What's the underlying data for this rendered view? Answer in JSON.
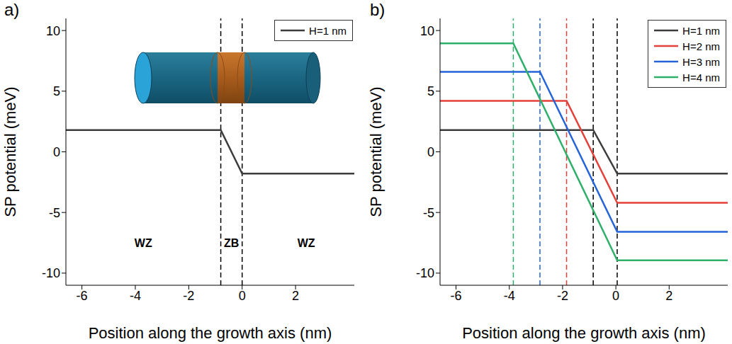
{
  "chart_data": [
    {
      "type": "line",
      "panel_label": "a)",
      "x_label": "Position along the growth axis (nm)",
      "y_label": "SP potential (meV)",
      "xlim": [
        -6.6,
        4.2
      ],
      "ylim": [
        -11,
        11
      ],
      "xticks": [
        -6,
        -4,
        -2,
        0,
        2
      ],
      "yticks": [
        -10,
        -5,
        0,
        5,
        10
      ],
      "legend": "upper right",
      "series": [
        {
          "name": "H=1 nm",
          "color": "#3c3c3c",
          "x": [
            -6.6,
            -0.8,
            0,
            4.2
          ],
          "values": [
            1.8,
            1.8,
            -1.8,
            -1.8
          ]
        }
      ],
      "vlines": [
        {
          "x": -0.8,
          "color": "#000000",
          "line_style": "dashed"
        },
        {
          "x": 0,
          "color": "#000000",
          "line_style": "dashed"
        }
      ],
      "annotations": [
        {
          "text": "WZ",
          "x": -3.7,
          "y": -7.5
        },
        {
          "text": "ZB",
          "x": -0.4,
          "y": -7.5
        },
        {
          "text": "WZ",
          "x": 2.4,
          "y": -7.5
        }
      ]
    },
    {
      "type": "line",
      "panel_label": "b)",
      "x_label": "Position along the growth axis (nm)",
      "y_label": "SP potential (meV)",
      "xlim": [
        -6.6,
        4.2
      ],
      "ylim": [
        -11,
        11
      ],
      "xticks": [
        -6,
        -4,
        -2,
        0,
        2
      ],
      "yticks": [
        -10,
        -5,
        0,
        5,
        10
      ],
      "legend": "upper right",
      "series": [
        {
          "name": "H=1 nm",
          "color": "#3c3c3c",
          "x": [
            -6.6,
            -0.85,
            0.05,
            4.2
          ],
          "values": [
            1.8,
            1.8,
            -1.8,
            -1.8
          ]
        },
        {
          "name": "H=2 nm",
          "color": "#e5403a",
          "x": [
            -6.6,
            -1.85,
            0.05,
            4.2
          ],
          "values": [
            4.2,
            4.2,
            -4.2,
            -4.2
          ]
        },
        {
          "name": "H=3 nm",
          "color": "#2463d9",
          "x": [
            -6.6,
            -2.85,
            0.05,
            4.2
          ],
          "values": [
            6.6,
            6.6,
            -6.6,
            -6.6
          ]
        },
        {
          "name": "H=4 nm",
          "color": "#2fb06a",
          "x": [
            -6.6,
            -3.85,
            0.05,
            4.2
          ],
          "values": [
            8.95,
            8.95,
            -8.95,
            -8.95
          ]
        }
      ],
      "vlines": [
        {
          "x": -3.85,
          "color": "#2fb06a",
          "line_style": "dashed"
        },
        {
          "x": -2.85,
          "color": "#2463d9",
          "line_style": "dashed"
        },
        {
          "x": -1.85,
          "color": "#e5403a",
          "line_style": "dashed"
        },
        {
          "x": -0.85,
          "color": "#000000",
          "line_style": "dashed"
        },
        {
          "x": 0.05,
          "color": "#000000",
          "line_style": "dashed"
        }
      ],
      "annotations": []
    }
  ]
}
